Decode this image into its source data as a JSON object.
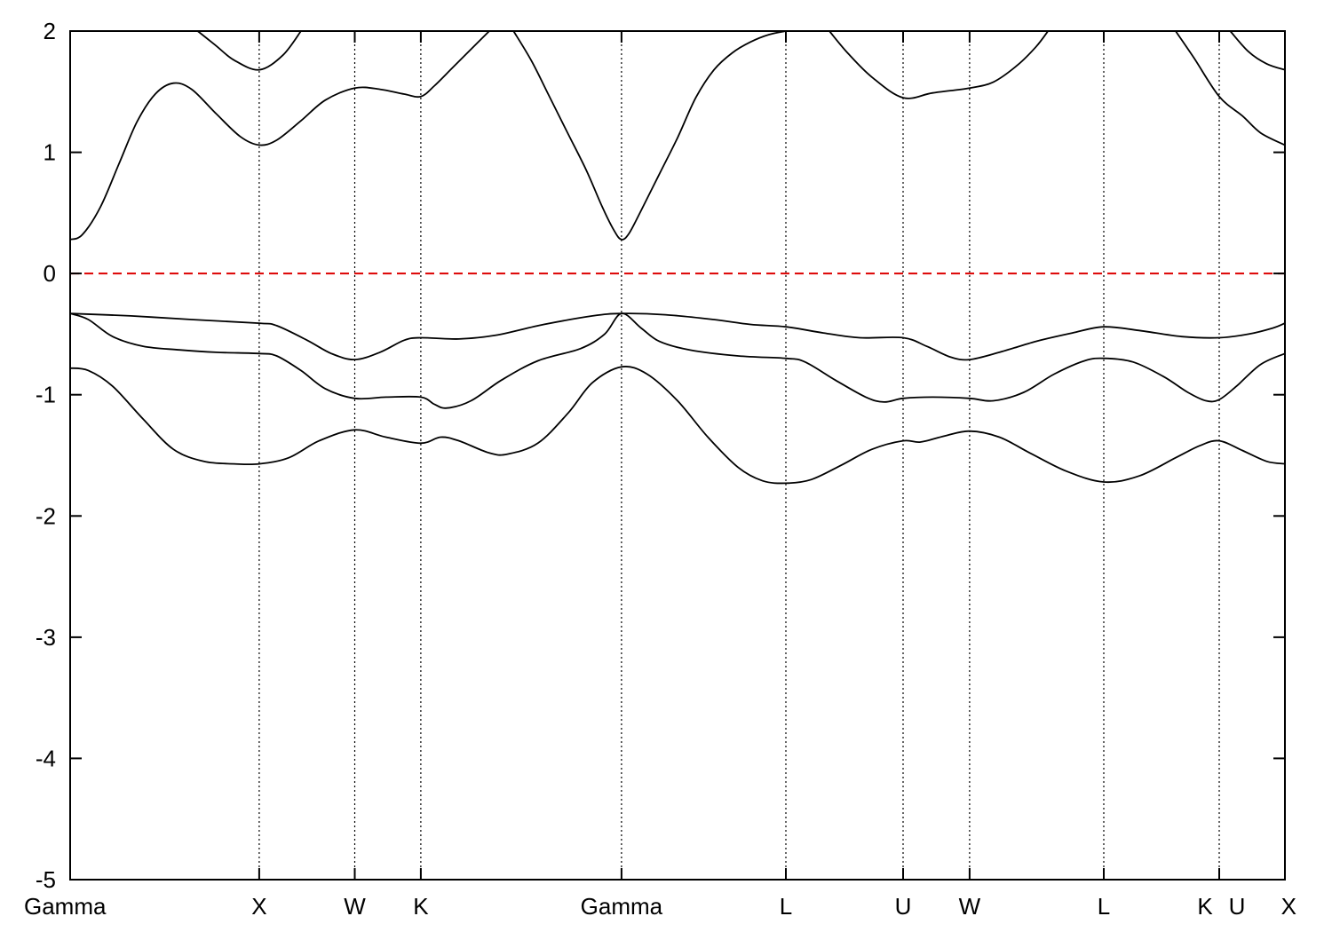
{
  "chart_data": {
    "type": "line",
    "title": "",
    "xlabel": "",
    "ylabel": "",
    "ylim": [
      -5,
      2
    ],
    "yticks": [
      2,
      1,
      0,
      -1,
      -2,
      -3,
      -4,
      -5
    ],
    "xlim": [
      0,
      10.0
    ],
    "kpoints": [
      {
        "label": "Gamma",
        "x": 0.0
      },
      {
        "label": "X",
        "x": 1.556
      },
      {
        "label": "W",
        "x": 2.343
      },
      {
        "label": "K",
        "x": 2.887
      },
      {
        "label": "Gamma",
        "x": 4.539
      },
      {
        "label": "L",
        "x": 5.892
      },
      {
        "label": "U",
        "x": 6.857
      },
      {
        "label": "W",
        "x": 7.404
      },
      {
        "label": "L",
        "x": 8.509
      },
      {
        "label": "K",
        "x": 9.459
      },
      {
        "label": "U",
        "x": 9.459
      },
      {
        "label": "X",
        "x": 10.0
      }
    ],
    "reference_line": {
      "y": 0,
      "color": "#dd0000",
      "style": "dashed"
    },
    "grid": false,
    "legend": "none",
    "series": [
      {
        "color": "#000000",
        "points": [
          [
            0,
            -0.78
          ],
          [
            0.15,
            -0.8
          ],
          [
            0.35,
            -0.93
          ],
          [
            0.6,
            -1.2
          ],
          [
            0.85,
            -1.45
          ],
          [
            1.1,
            -1.55
          ],
          [
            1.35,
            -1.57
          ],
          [
            1.556,
            -1.57
          ],
          [
            1.8,
            -1.52
          ],
          [
            2.05,
            -1.38
          ],
          [
            2.343,
            -1.29
          ],
          [
            2.6,
            -1.35
          ],
          [
            2.887,
            -1.4
          ],
          [
            3.05,
            -1.35
          ],
          [
            3.2,
            -1.38
          ],
          [
            3.45,
            -1.48
          ],
          [
            3.6,
            -1.49
          ],
          [
            3.85,
            -1.4
          ],
          [
            4.1,
            -1.15
          ],
          [
            4.3,
            -0.9
          ],
          [
            4.539,
            -0.77
          ],
          [
            4.75,
            -0.83
          ],
          [
            5.0,
            -1.05
          ],
          [
            5.25,
            -1.35
          ],
          [
            5.5,
            -1.6
          ],
          [
            5.7,
            -1.71
          ],
          [
            5.892,
            -1.73
          ],
          [
            6.1,
            -1.7
          ],
          [
            6.35,
            -1.58
          ],
          [
            6.6,
            -1.45
          ],
          [
            6.857,
            -1.38
          ],
          [
            7.0,
            -1.39
          ],
          [
            7.2,
            -1.34
          ],
          [
            7.404,
            -1.3
          ],
          [
            7.65,
            -1.35
          ],
          [
            7.9,
            -1.48
          ],
          [
            8.2,
            -1.63
          ],
          [
            8.509,
            -1.72
          ],
          [
            8.8,
            -1.67
          ],
          [
            9.1,
            -1.52
          ],
          [
            9.3,
            -1.42
          ],
          [
            9.459,
            -1.38
          ],
          [
            9.65,
            -1.46
          ],
          [
            9.85,
            -1.55
          ],
          [
            10.0,
            -1.57
          ]
        ]
      },
      {
        "color": "#000000",
        "points": [
          [
            0,
            -0.33
          ],
          [
            0.15,
            -0.38
          ],
          [
            0.35,
            -0.52
          ],
          [
            0.6,
            -0.6
          ],
          [
            0.9,
            -0.63
          ],
          [
            1.2,
            -0.65
          ],
          [
            1.556,
            -0.66
          ],
          [
            1.7,
            -0.68
          ],
          [
            1.9,
            -0.8
          ],
          [
            2.1,
            -0.95
          ],
          [
            2.343,
            -1.03
          ],
          [
            2.6,
            -1.02
          ],
          [
            2.887,
            -1.02
          ],
          [
            3.0,
            -1.08
          ],
          [
            3.1,
            -1.11
          ],
          [
            3.3,
            -1.05
          ],
          [
            3.55,
            -0.88
          ],
          [
            3.85,
            -0.72
          ],
          [
            4.2,
            -0.62
          ],
          [
            4.4,
            -0.5
          ],
          [
            4.539,
            -0.33
          ],
          [
            4.7,
            -0.45
          ],
          [
            4.85,
            -0.56
          ],
          [
            5.1,
            -0.63
          ],
          [
            5.5,
            -0.68
          ],
          [
            5.892,
            -0.7
          ],
          [
            6.05,
            -0.73
          ],
          [
            6.3,
            -0.88
          ],
          [
            6.55,
            -1.02
          ],
          [
            6.7,
            -1.06
          ],
          [
            6.857,
            -1.03
          ],
          [
            7.1,
            -1.02
          ],
          [
            7.404,
            -1.03
          ],
          [
            7.6,
            -1.05
          ],
          [
            7.85,
            -0.98
          ],
          [
            8.1,
            -0.83
          ],
          [
            8.35,
            -0.72
          ],
          [
            8.509,
            -0.7
          ],
          [
            8.75,
            -0.73
          ],
          [
            9.0,
            -0.85
          ],
          [
            9.2,
            -0.98
          ],
          [
            9.35,
            -1.05
          ],
          [
            9.459,
            -1.04
          ],
          [
            9.6,
            -0.93
          ],
          [
            9.8,
            -0.75
          ],
          [
            10.0,
            -0.66
          ]
        ]
      },
      {
        "color": "#000000",
        "points": [
          [
            0,
            -0.33
          ],
          [
            0.5,
            -0.35
          ],
          [
            1.0,
            -0.38
          ],
          [
            1.556,
            -0.41
          ],
          [
            1.7,
            -0.43
          ],
          [
            1.95,
            -0.55
          ],
          [
            2.15,
            -0.66
          ],
          [
            2.343,
            -0.71
          ],
          [
            2.55,
            -0.65
          ],
          [
            2.75,
            -0.55
          ],
          [
            2.887,
            -0.53
          ],
          [
            3.2,
            -0.54
          ],
          [
            3.5,
            -0.51
          ],
          [
            3.9,
            -0.42
          ],
          [
            4.3,
            -0.35
          ],
          [
            4.539,
            -0.33
          ],
          [
            4.9,
            -0.34
          ],
          [
            5.3,
            -0.38
          ],
          [
            5.6,
            -0.42
          ],
          [
            5.892,
            -0.44
          ],
          [
            6.2,
            -0.49
          ],
          [
            6.5,
            -0.53
          ],
          [
            6.857,
            -0.53
          ],
          [
            7.05,
            -0.6
          ],
          [
            7.25,
            -0.69
          ],
          [
            7.404,
            -0.71
          ],
          [
            7.65,
            -0.65
          ],
          [
            7.95,
            -0.56
          ],
          [
            8.25,
            -0.49
          ],
          [
            8.509,
            -0.44
          ],
          [
            8.8,
            -0.47
          ],
          [
            9.15,
            -0.52
          ],
          [
            9.459,
            -0.53
          ],
          [
            9.7,
            -0.5
          ],
          [
            9.9,
            -0.45
          ],
          [
            10.0,
            -0.41
          ]
        ]
      },
      {
        "color": "#000000",
        "points": [
          [
            0,
            0.28
          ],
          [
            0.1,
            0.32
          ],
          [
            0.25,
            0.55
          ],
          [
            0.4,
            0.9
          ],
          [
            0.55,
            1.25
          ],
          [
            0.7,
            1.48
          ],
          [
            0.85,
            1.57
          ],
          [
            1.0,
            1.52
          ],
          [
            1.2,
            1.32
          ],
          [
            1.4,
            1.13
          ],
          [
            1.556,
            1.06
          ],
          [
            1.7,
            1.1
          ],
          [
            1.9,
            1.26
          ],
          [
            2.1,
            1.43
          ],
          [
            2.343,
            1.53
          ],
          [
            2.55,
            1.52
          ],
          [
            2.75,
            1.48
          ],
          [
            2.887,
            1.46
          ],
          [
            3.0,
            1.55
          ],
          [
            3.15,
            1.7
          ],
          [
            3.3,
            1.85
          ],
          [
            3.45,
            2.0
          ]
        ]
      },
      {
        "color": "#000000",
        "points": [
          [
            3.65,
            2.0
          ],
          [
            3.8,
            1.75
          ],
          [
            3.95,
            1.45
          ],
          [
            4.1,
            1.15
          ],
          [
            4.25,
            0.85
          ],
          [
            4.38,
            0.55
          ],
          [
            4.48,
            0.35
          ],
          [
            4.539,
            0.28
          ],
          [
            4.6,
            0.33
          ],
          [
            4.7,
            0.52
          ],
          [
            4.85,
            0.82
          ],
          [
            5.0,
            1.12
          ],
          [
            5.15,
            1.45
          ],
          [
            5.3,
            1.68
          ],
          [
            5.45,
            1.82
          ],
          [
            5.6,
            1.91
          ],
          [
            5.75,
            1.97
          ],
          [
            5.892,
            2.0
          ]
        ]
      },
      {
        "color": "#000000",
        "points": [
          [
            1.05,
            2.0
          ],
          [
            1.2,
            1.88
          ],
          [
            1.35,
            1.76
          ],
          [
            1.556,
            1.68
          ],
          [
            1.75,
            1.8
          ],
          [
            1.9,
            2.0
          ]
        ]
      },
      {
        "color": "#000000",
        "points": [
          [
            6.25,
            2.0
          ],
          [
            6.4,
            1.82
          ],
          [
            6.6,
            1.62
          ],
          [
            6.857,
            1.45
          ],
          [
            7.1,
            1.49
          ],
          [
            7.404,
            1.53
          ],
          [
            7.6,
            1.58
          ],
          [
            7.8,
            1.72
          ],
          [
            7.95,
            1.87
          ],
          [
            8.05,
            2.0
          ]
        ]
      },
      {
        "color": "#000000",
        "points": [
          [
            9.1,
            2.0
          ],
          [
            9.25,
            1.78
          ],
          [
            9.459,
            1.46
          ],
          [
            9.65,
            1.3
          ],
          [
            9.8,
            1.16
          ],
          [
            10.0,
            1.06
          ]
        ]
      },
      {
        "color": "#000000",
        "points": [
          [
            9.55,
            2.0
          ],
          [
            9.7,
            1.83
          ],
          [
            9.85,
            1.73
          ],
          [
            10.0,
            1.68
          ]
        ]
      }
    ]
  }
}
